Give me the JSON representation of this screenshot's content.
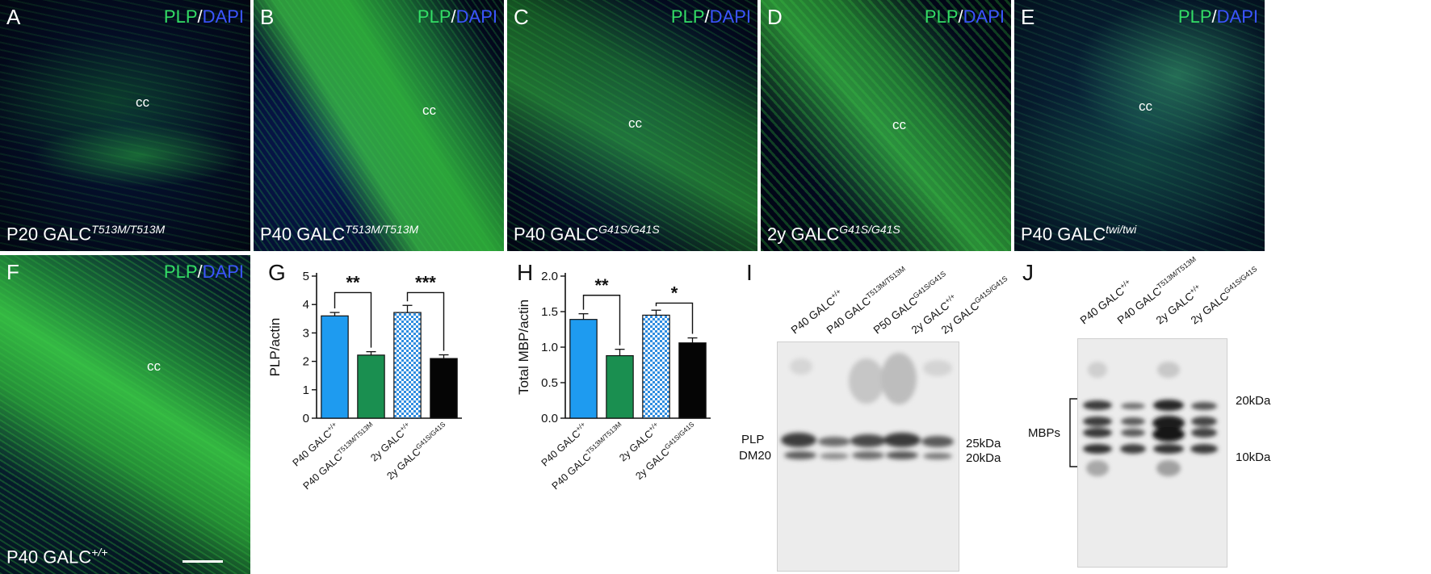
{
  "stain": {
    "plp": "PLP",
    "slash": "/",
    "dapi": "DAPI"
  },
  "micrographs": [
    {
      "label": "A",
      "cc": "cc",
      "genotype_base": "P20 GALC",
      "genotype_sup": "T513M/T513M",
      "stain": true
    },
    {
      "label": "B",
      "cc": "cc",
      "genotype_base": "P40 GALC",
      "genotype_sup": "T513M/T513M",
      "stain": true
    },
    {
      "label": "C",
      "cc": "cc",
      "genotype_base": "P40 GALC",
      "genotype_sup": "G41S/G41S",
      "stain": true
    },
    {
      "label": "D",
      "cc": "cc",
      "genotype_base": "2y  GALC",
      "genotype_sup": "G41S/G41S",
      "stain": true
    },
    {
      "label": "E",
      "cc": "cc",
      "genotype_base": "P40 GALC",
      "genotype_sup": "twi/twi",
      "stain": true
    },
    {
      "label": "F",
      "cc": "cc",
      "genotype_base": "P40 GALC",
      "genotype_sup": "+/+",
      "stain": true
    }
  ],
  "chart_data": [
    {
      "type": "bar",
      "panel": "G",
      "ylabel": "PLP/actin",
      "ylim": [
        0,
        5
      ],
      "yticks": [
        0,
        1,
        2,
        3,
        4,
        5
      ],
      "categories": [
        {
          "base": "P40 GALC",
          "sup": "+/+"
        },
        {
          "base": "P40 GALC",
          "sup": "T513M/T513M"
        },
        {
          "base": "2y GALC",
          "sup": "+/+"
        },
        {
          "base": "2y GALC",
          "sup": "G41S/G41S"
        }
      ],
      "values": [
        3.6,
        2.22,
        3.72,
        2.1
      ],
      "errors": [
        0.12,
        0.12,
        0.25,
        0.13
      ],
      "colors": [
        "#1e9bf0",
        "#1a8f50",
        "checker",
        "#050505"
      ],
      "significance": [
        {
          "from": 0,
          "to": 1,
          "label": "**",
          "height": 4.42
        },
        {
          "from": 2,
          "to": 3,
          "label": "***",
          "height": 4.42
        }
      ]
    },
    {
      "type": "bar",
      "panel": "H",
      "ylabel": "Total MBP/actin",
      "ylim": [
        0,
        2.0
      ],
      "yticks": [
        0.0,
        0.5,
        1.0,
        1.5,
        2.0
      ],
      "categories": [
        {
          "base": "P40 GALC",
          "sup": "+/+"
        },
        {
          "base": "P40 GALC",
          "sup": "T513M/T513M"
        },
        {
          "base": "2y GALC",
          "sup": "+/+"
        },
        {
          "base": "2y GALC",
          "sup": "G41S/G41S"
        }
      ],
      "values": [
        1.39,
        0.88,
        1.45,
        1.06
      ],
      "errors": [
        0.08,
        0.09,
        0.07,
        0.07
      ],
      "colors": [
        "#1e9bf0",
        "#1a8f50",
        "checker",
        "#050505"
      ],
      "significance": [
        {
          "from": 0,
          "to": 1,
          "label": "**",
          "height": 1.73
        },
        {
          "from": 2,
          "to": 3,
          "label": "*",
          "height": 1.62
        }
      ]
    }
  ],
  "blot_I": {
    "label": "I",
    "lanes": [
      {
        "base": "P40 GALC",
        "sup": "+/+"
      },
      {
        "base": "P40 GALC",
        "sup": "T513M/T513M"
      },
      {
        "base": "P50 GALC",
        "sup": "G41S/G41S"
      },
      {
        "base": "2y GALC",
        "sup": "+/+"
      },
      {
        "base": "2y GALC",
        "sup": "G41S/G41S"
      }
    ],
    "band_labels": [
      "PLP",
      "DM20"
    ],
    "size_labels": [
      "25kDa",
      "20kDa"
    ]
  },
  "blot_J": {
    "label": "J",
    "lanes": [
      {
        "base": "P40 GALC",
        "sup": "+/+"
      },
      {
        "base": "P40 GALC",
        "sup": "T513M/T513M"
      },
      {
        "base": "2y GALC",
        "sup": "+/+"
      },
      {
        "base": "2y GALC",
        "sup": "G41S/G41S"
      }
    ],
    "band_label": "MBPs",
    "size_labels": [
      "20kDa",
      "10kDa"
    ]
  }
}
